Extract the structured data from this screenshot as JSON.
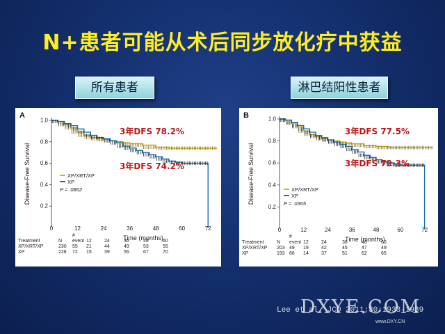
{
  "slide": {
    "title": "N+患者可能从术后同步放化疗中获益",
    "tag_left": "所有患者",
    "tag_right": "淋巴结阳性患者",
    "citation": "Lee et al. JCO 2011;30:1933-1939",
    "watermark": "DXYE.COM",
    "watermark_small": "www.DXY.CN"
  },
  "chart_data": [
    {
      "type": "line",
      "panel": "A",
      "ylabel": "Disease-Free Survival",
      "xlabel": "Time (months)",
      "xlim": [
        0,
        78
      ],
      "ylim": [
        0,
        1.0
      ],
      "xticks": [
        0,
        12,
        24,
        36,
        48,
        60,
        72
      ],
      "yticks": [
        0.2,
        0.4,
        0.6,
        0.8,
        1.0
      ],
      "legend": [
        "XP/XRT/XP",
        "XP"
      ],
      "pvalue": "P = .0862",
      "annotations": [
        "3年DFS 78.2%",
        "3年DFS 74.2%"
      ],
      "series": [
        {
          "name": "XP/XRT/XP",
          "color": "#d8b01a",
          "points": [
            [
              0,
              1.0
            ],
            [
              3,
              0.99
            ],
            [
              6,
              0.96
            ],
            [
              9,
              0.93
            ],
            [
              12,
              0.89
            ],
            [
              15,
              0.86
            ],
            [
              18,
              0.84
            ],
            [
              21,
              0.83
            ],
            [
              24,
              0.82
            ],
            [
              27,
              0.81
            ],
            [
              30,
              0.8
            ],
            [
              33,
              0.79
            ],
            [
              36,
              0.782
            ],
            [
              42,
              0.77
            ],
            [
              48,
              0.75
            ],
            [
              54,
              0.74
            ],
            [
              60,
              0.74
            ],
            [
              66,
              0.74
            ],
            [
              72,
              0.74
            ],
            [
              76,
              0.74
            ]
          ]
        },
        {
          "name": "XP",
          "color": "#1b6fa8",
          "points": [
            [
              0,
              1.0
            ],
            [
              3,
              0.99
            ],
            [
              6,
              0.97
            ],
            [
              9,
              0.95
            ],
            [
              12,
              0.92
            ],
            [
              15,
              0.89
            ],
            [
              18,
              0.86
            ],
            [
              21,
              0.84
            ],
            [
              24,
              0.83
            ],
            [
              27,
              0.81
            ],
            [
              30,
              0.79
            ],
            [
              33,
              0.76
            ],
            [
              36,
              0.742
            ],
            [
              39,
              0.72
            ],
            [
              42,
              0.7
            ],
            [
              45,
              0.68
            ],
            [
              48,
              0.66
            ],
            [
              51,
              0.64
            ],
            [
              54,
              0.62
            ],
            [
              57,
              0.61
            ],
            [
              60,
              0.6
            ],
            [
              66,
              0.6
            ],
            [
              72,
              0.6
            ],
            [
              72,
              0.0
            ]
          ]
        }
      ],
      "risk_table": {
        "header": [
          "Treatment",
          "N",
          "event",
          "12",
          "24",
          "36",
          "48",
          "60"
        ],
        "mark": "#",
        "rows": [
          [
            "XP/XRT/XP",
            "230",
            "55",
            "21",
            "44",
            "49",
            "53",
            "55"
          ],
          [
            "XP",
            "228",
            "72",
            "15",
            "39",
            "56",
            "67",
            "70"
          ]
        ]
      }
    },
    {
      "type": "line",
      "panel": "B",
      "ylabel": "Disease-Free Survival",
      "xlabel": "Time (months)",
      "xlim": [
        0,
        78
      ],
      "ylim": [
        0,
        1.0
      ],
      "xticks": [
        0,
        12,
        24,
        36,
        48,
        60,
        72
      ],
      "yticks": [
        0.2,
        0.4,
        0.6,
        0.8,
        1.0
      ],
      "legend": [
        "XP/XRT/XP",
        "XP"
      ],
      "pvalue": "P = .0365",
      "annotations": [
        "3年DFS 77.5%",
        "3年DFS 72.3%"
      ],
      "series": [
        {
          "name": "XP/XRT/XP",
          "color": "#d8b01a",
          "points": [
            [
              0,
              1.0
            ],
            [
              3,
              0.99
            ],
            [
              6,
              0.96
            ],
            [
              9,
              0.93
            ],
            [
              12,
              0.89
            ],
            [
              15,
              0.86
            ],
            [
              18,
              0.84
            ],
            [
              21,
              0.82
            ],
            [
              24,
              0.81
            ],
            [
              27,
              0.8
            ],
            [
              30,
              0.79
            ],
            [
              33,
              0.78
            ],
            [
              36,
              0.775
            ],
            [
              42,
              0.76
            ],
            [
              48,
              0.75
            ],
            [
              54,
              0.74
            ],
            [
              60,
              0.74
            ],
            [
              66,
              0.74
            ],
            [
              72,
              0.74
            ],
            [
              76,
              0.74
            ]
          ]
        },
        {
          "name": "XP",
          "color": "#1b6fa8",
          "points": [
            [
              0,
              1.0
            ],
            [
              3,
              0.99
            ],
            [
              6,
              0.97
            ],
            [
              9,
              0.94
            ],
            [
              12,
              0.91
            ],
            [
              15,
              0.88
            ],
            [
              18,
              0.85
            ],
            [
              21,
              0.83
            ],
            [
              24,
              0.81
            ],
            [
              27,
              0.79
            ],
            [
              30,
              0.77
            ],
            [
              33,
              0.75
            ],
            [
              36,
              0.723
            ],
            [
              39,
              0.7
            ],
            [
              42,
              0.67
            ],
            [
              45,
              0.65
            ],
            [
              48,
              0.63
            ],
            [
              51,
              0.61
            ],
            [
              54,
              0.6
            ],
            [
              57,
              0.59
            ],
            [
              60,
              0.58
            ],
            [
              66,
              0.58
            ],
            [
              72,
              0.58
            ],
            [
              72,
              0.0
            ]
          ]
        }
      ],
      "risk_table": {
        "header": [
          "Treatment",
          "N",
          "event",
          "12",
          "24",
          "36",
          "48",
          "60"
        ],
        "mark": "#",
        "rows": [
          [
            "XP/XRT/XP",
            "203",
            "49",
            "19",
            "42",
            "45",
            "47",
            "49"
          ],
          [
            "XP",
            "193",
            "66",
            "14",
            "37",
            "51",
            "62",
            "65"
          ]
        ]
      }
    }
  ]
}
